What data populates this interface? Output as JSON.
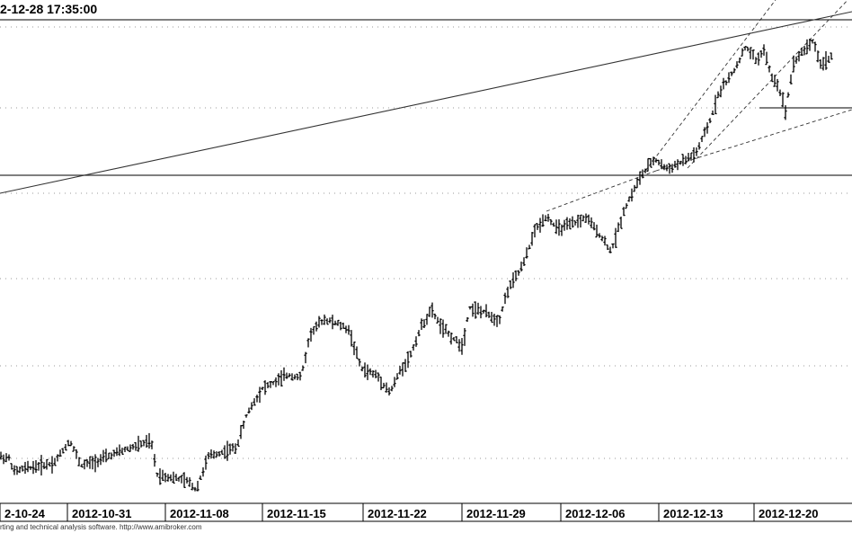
{
  "header": {
    "timestamp": "2-12-28 17:35:00"
  },
  "footer": {
    "credit": "rting and technical analysis software. http://www.amibroker.com"
  },
  "chart_data": {
    "type": "candlestick",
    "title": "",
    "xlabel": "",
    "ylabel": "",
    "grid": true,
    "x_tick_labels": [
      "2-10-24",
      "2012-10-31",
      "2012-11-08",
      "2012-11-15",
      "2012-11-22",
      "2012-11-29",
      "2012-12-06",
      "2012-12-13",
      "2012-12-20"
    ],
    "ylim": [
      0,
      100
    ],
    "price_path": [
      [
        0,
        52
      ],
      [
        10,
        50
      ],
      [
        16,
        35
      ],
      [
        25,
        38
      ],
      [
        40,
        41
      ],
      [
        60,
        45
      ],
      [
        78,
        70
      ],
      [
        90,
        42
      ],
      [
        105,
        46
      ],
      [
        120,
        52
      ],
      [
        140,
        60
      ],
      [
        155,
        65
      ],
      [
        168,
        69
      ],
      [
        175,
        32
      ],
      [
        195,
        28
      ],
      [
        210,
        24
      ],
      [
        218,
        15
      ],
      [
        232,
        52
      ],
      [
        250,
        58
      ],
      [
        263,
        62
      ],
      [
        275,
        100
      ],
      [
        292,
        128
      ],
      [
        305,
        134
      ],
      [
        320,
        143
      ],
      [
        335,
        140
      ],
      [
        345,
        188
      ],
      [
        360,
        205
      ],
      [
        375,
        200
      ],
      [
        388,
        193
      ],
      [
        402,
        150
      ],
      [
        420,
        142
      ],
      [
        434,
        123
      ],
      [
        445,
        147
      ],
      [
        456,
        163
      ],
      [
        468,
        195
      ],
      [
        480,
        215
      ],
      [
        492,
        195
      ],
      [
        505,
        183
      ],
      [
        515,
        175
      ],
      [
        522,
        218
      ],
      [
        540,
        212
      ],
      [
        555,
        203
      ],
      [
        565,
        237
      ],
      [
        582,
        265
      ],
      [
        595,
        303
      ],
      [
        608,
        320
      ],
      [
        620,
        305
      ],
      [
        636,
        310
      ],
      [
        652,
        318
      ],
      [
        668,
        298
      ],
      [
        680,
        280
      ],
      [
        695,
        328
      ],
      [
        712,
        362
      ],
      [
        728,
        383
      ],
      [
        742,
        372
      ],
      [
        760,
        380
      ],
      [
        775,
        390
      ],
      [
        790,
        425
      ],
      [
        800,
        458
      ],
      [
        815,
        478
      ],
      [
        830,
        508
      ],
      [
        842,
        492
      ],
      [
        850,
        505
      ],
      [
        858,
        475
      ],
      [
        866,
        465
      ],
      [
        874,
        437
      ],
      [
        883,
        490
      ],
      [
        895,
        505
      ],
      [
        905,
        515
      ],
      [
        913,
        488
      ],
      [
        925,
        497
      ]
    ],
    "horizontal_lines": [
      {
        "y": 365
      },
      {
        "y": 440
      }
    ],
    "trend_lines": [
      {
        "style": "solid",
        "p1": [
          0,
          345
        ],
        "p2": [
          948,
          547
        ]
      },
      {
        "style": "dashed",
        "p1": [
          718,
          370
        ],
        "p2": [
          888,
          593
        ]
      },
      {
        "style": "dashed",
        "p1": [
          765,
          373
        ],
        "p2": [
          948,
          565
        ]
      },
      {
        "style": "dashed",
        "p1": [
          608,
          325
        ],
        "p2": [
          730,
          370
        ]
      },
      {
        "style": "dashed",
        "p1": [
          730,
          370
        ],
        "p2": [
          948,
          438
        ]
      }
    ],
    "grid_levels": [
      530,
      440,
      345,
      250,
      153,
      50
    ]
  }
}
